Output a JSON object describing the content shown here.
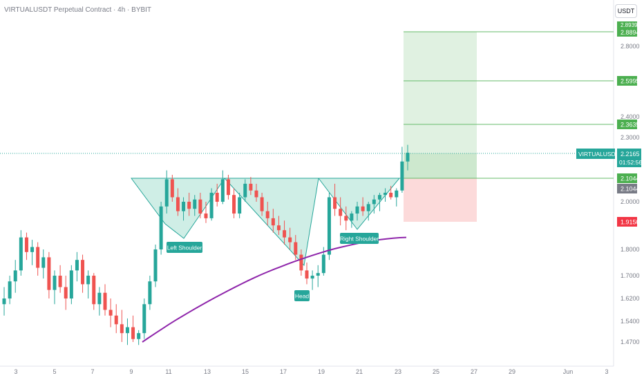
{
  "header": {
    "title": "VIRTUALUSDT Perpetual Contract · 4h · BYBIT",
    "currency": "USDT"
  },
  "price_axis": {
    "ticks": [
      "2.8000",
      "2.4000",
      "2.3000",
      "2.0000",
      "1.8000",
      "1.7000",
      "1.6200",
      "1.5400",
      "1.4700"
    ]
  },
  "time_axis": {
    "ticks": [
      "3",
      "5",
      "7",
      "9",
      "11",
      "13",
      "15",
      "17",
      "19",
      "21",
      "23",
      "25",
      "27",
      "29",
      "Jun",
      "3"
    ]
  },
  "price_labels": {
    "tp3": "2.8894",
    "tp3_top": "2.8939",
    "tp2": "2.5995",
    "tp1": "2.3635",
    "symbol": "VIRTUALUSDT.P",
    "last_price": "2.2165",
    "countdown": "01:52:56",
    "entry": "2.1044",
    "entry_alt": "2.1044",
    "stop": "1.9150"
  },
  "annotations": {
    "left_shoulder": "Left Shoulder",
    "head": "Head",
    "right_shoulder": "Right Shoulder"
  },
  "colors": {
    "up": "#26a69a",
    "down": "#ef5350",
    "ma": "#8e24aa",
    "pattern_fill": "#cfeee6",
    "pattern_line": "#26a69a",
    "target_fill": "#dbefdc",
    "target_line": "#66bb6a",
    "stop_fill": "#fcdada",
    "stop_label": "#f23645",
    "entry_gray": "#787b86",
    "last_price_line": "#26a69a"
  },
  "chart_data": {
    "type": "candlestick",
    "timeframe": "4h",
    "x_axis_ticks": [
      "3",
      "5",
      "7",
      "9",
      "11",
      "13",
      "15",
      "17",
      "19",
      "21",
      "23",
      "25",
      "27",
      "29",
      "Jun",
      "3"
    ],
    "ohlc_approx": [
      [
        1.6,
        1.66,
        1.56,
        1.62
      ],
      [
        1.62,
        1.7,
        1.6,
        1.68
      ],
      [
        1.68,
        1.76,
        1.64,
        1.72
      ],
      [
        1.72,
        1.88,
        1.7,
        1.85
      ],
      [
        1.85,
        1.87,
        1.76,
        1.79
      ],
      [
        1.79,
        1.84,
        1.74,
        1.81
      ],
      [
        1.81,
        1.83,
        1.7,
        1.73
      ],
      [
        1.73,
        1.8,
        1.69,
        1.77
      ],
      [
        1.77,
        1.79,
        1.62,
        1.65
      ],
      [
        1.65,
        1.72,
        1.6,
        1.7
      ],
      [
        1.7,
        1.74,
        1.64,
        1.66
      ],
      [
        1.66,
        1.7,
        1.58,
        1.62
      ],
      [
        1.62,
        1.74,
        1.6,
        1.72
      ],
      [
        1.72,
        1.79,
        1.68,
        1.76
      ],
      [
        1.76,
        1.78,
        1.64,
        1.67
      ],
      [
        1.67,
        1.72,
        1.62,
        1.7
      ],
      [
        1.7,
        1.71,
        1.58,
        1.6
      ],
      [
        1.6,
        1.66,
        1.56,
        1.64
      ],
      [
        1.64,
        1.67,
        1.56,
        1.58
      ],
      [
        1.58,
        1.62,
        1.52,
        1.56
      ],
      [
        1.56,
        1.6,
        1.5,
        1.53
      ],
      [
        1.53,
        1.58,
        1.47,
        1.5
      ],
      [
        1.5,
        1.55,
        1.46,
        1.52
      ],
      [
        1.52,
        1.56,
        1.47,
        1.48
      ],
      [
        1.48,
        1.51,
        1.46,
        1.5
      ],
      [
        1.5,
        1.62,
        1.48,
        1.6
      ],
      [
        1.6,
        1.7,
        1.58,
        1.68
      ],
      [
        1.68,
        1.82,
        1.66,
        1.8
      ],
      [
        1.8,
        2.0,
        1.78,
        1.98
      ],
      [
        1.98,
        2.14,
        1.95,
        2.1
      ],
      [
        2.1,
        2.12,
        2.0,
        2.02
      ],
      [
        2.02,
        2.06,
        1.94,
        1.96
      ],
      [
        1.96,
        2.02,
        1.92,
        2.0
      ],
      [
        2.0,
        2.04,
        1.94,
        1.97
      ],
      [
        1.97,
        2.03,
        1.94,
        2.01
      ],
      [
        2.01,
        2.04,
        1.93,
        1.95
      ],
      [
        1.95,
        2.0,
        1.91,
        1.93
      ],
      [
        1.93,
        2.06,
        1.92,
        2.04
      ],
      [
        2.04,
        2.08,
        1.98,
        2.0
      ],
      [
        2.0,
        2.14,
        1.99,
        2.1
      ],
      [
        2.1,
        2.12,
        2.01,
        2.03
      ],
      [
        2.03,
        2.06,
        1.93,
        1.95
      ],
      [
        1.95,
        2.04,
        1.93,
        2.02
      ],
      [
        2.02,
        2.1,
        2.0,
        2.08
      ],
      [
        2.08,
        2.11,
        2.03,
        2.05
      ],
      [
        2.05,
        2.08,
        2.0,
        2.02
      ],
      [
        2.02,
        2.04,
        1.94,
        1.96
      ],
      [
        1.96,
        2.0,
        1.9,
        1.93
      ],
      [
        1.93,
        1.97,
        1.87,
        1.9
      ],
      [
        1.9,
        1.94,
        1.86,
        1.88
      ],
      [
        1.88,
        1.92,
        1.82,
        1.85
      ],
      [
        1.85,
        1.89,
        1.8,
        1.83
      ],
      [
        1.83,
        1.86,
        1.76,
        1.78
      ],
      [
        1.78,
        1.8,
        1.7,
        1.72
      ],
      [
        1.72,
        1.75,
        1.67,
        1.69
      ],
      [
        1.69,
        1.72,
        1.65,
        1.7
      ],
      [
        1.7,
        1.74,
        1.66,
        1.71
      ],
      [
        1.71,
        1.81,
        1.7,
        1.78
      ],
      [
        1.78,
        2.04,
        1.76,
        2.02
      ],
      [
        2.02,
        2.08,
        1.94,
        1.97
      ],
      [
        1.97,
        2.02,
        1.9,
        1.94
      ],
      [
        1.94,
        1.98,
        1.88,
        1.92
      ],
      [
        1.92,
        1.96,
        1.89,
        1.95
      ],
      [
        1.95,
        2.0,
        1.92,
        1.98
      ],
      [
        1.98,
        2.02,
        1.94,
        1.96
      ],
      [
        1.96,
        2.0,
        1.92,
        1.99
      ],
      [
        1.99,
        2.03,
        1.95,
        2.01
      ],
      [
        2.01,
        2.04,
        1.96,
        2.03
      ],
      [
        2.03,
        2.06,
        2.0,
        2.04
      ],
      [
        2.04,
        2.07,
        2.01,
        2.02
      ],
      [
        2.02,
        2.06,
        1.98,
        2.05
      ],
      [
        2.05,
        2.25,
        2.04,
        2.18
      ],
      [
        2.18,
        2.26,
        2.14,
        2.22
      ]
    ],
    "moving_average": {
      "start_price": 1.47,
      "end_price": 1.85
    },
    "pattern": "inverse head and shoulders",
    "levels": {
      "take_profit_3": 2.8894,
      "take_profit_2": 2.5995,
      "take_profit_1": 2.3635,
      "last_price": 2.2165,
      "entry": 2.1044,
      "stop_loss": 1.915
    },
    "y_axis_ticks": [
      "2.8000",
      "2.4000",
      "2.3000",
      "2.0000",
      "1.8000",
      "1.7000",
      "1.6200",
      "1.5400",
      "1.4700"
    ]
  }
}
